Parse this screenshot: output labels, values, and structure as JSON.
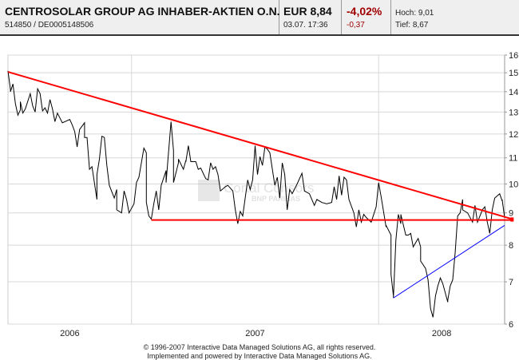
{
  "header": {
    "name": "CENTROSOLAR GROUP AG INHABER-AKTIEN O.N.",
    "ids": "514850  /  DE0005148506",
    "price": "EUR 8,84",
    "datetime": "03.07. 17:36",
    "change_pct": "-4,02%",
    "change_abs": "-0,37",
    "high": "Hoch: 9,01",
    "low": "Tief: 8,67"
  },
  "watermark": {
    "line1": "Cortal Consors",
    "line2": "BNP PARIBAS"
  },
  "footer": {
    "line1": "© 1996-2007 Interactive Data Managed Solutions AG, all rights reserved.",
    "line2": "Implemented and powered by Interactive Data Managed Solutions AG."
  },
  "chart_data": {
    "type": "line",
    "y_scale": "log",
    "ylim": [
      6,
      16
    ],
    "y_ticks": [
      "6",
      "7",
      "8",
      "9",
      "10",
      "11",
      "12",
      "13",
      "14",
      "15",
      "16"
    ],
    "y_axis_position": "right",
    "xlim": [
      2006.5,
      2008.51
    ],
    "x_tick_labels": [
      "2006",
      "2007",
      "2008"
    ],
    "grid": true,
    "colors": {
      "price": "#000000",
      "resistance": "#ff0000",
      "support": "#ff0000",
      "uptrend": "#0000ff"
    },
    "series": [
      {
        "x": [
          2006.5,
          2006.5,
          2006.51,
          2006.51,
          2006.52,
          2006.53,
          2006.54,
          2006.55,
          2006.55,
          2006.56,
          2006.57,
          2006.59,
          2006.6,
          2006.61,
          2006.62,
          2006.63,
          2006.64,
          2006.65,
          2006.66,
          2006.67,
          2006.68,
          2006.69,
          2006.7,
          2006.72,
          2006.75,
          2006.76,
          2006.77,
          2006.78,
          2006.79,
          2006.81,
          2006.81,
          2006.82,
          2006.83,
          2006.84,
          2006.86,
          2006.86,
          2006.87,
          2006.88,
          2006.89,
          2006.9,
          2006.91,
          2006.93,
          2006.94,
          2006.94,
          2006.96,
          2006.97,
          2006.98,
          2006.99,
          2007.01,
          2007.02,
          2007.03,
          2007.05,
          2007.06,
          2007.06,
          2007.07,
          2007.08,
          2007.09,
          2007.1,
          2007.11,
          2007.12,
          2007.14,
          2007.14,
          2007.16,
          2007.17,
          2007.17,
          2007.19,
          2007.19,
          2007.21,
          2007.22,
          2007.22,
          2007.23,
          2007.24,
          2007.26,
          2007.27,
          2007.28,
          2007.3,
          2007.31,
          2007.32,
          2007.33,
          2007.34,
          2007.35,
          2007.36,
          2007.38,
          2007.39,
          2007.41,
          2007.42,
          2007.43,
          2007.44,
          2007.45,
          2007.47,
          2007.48,
          2007.49,
          2007.5,
          2007.51,
          2007.52,
          2007.53,
          2007.54,
          2007.55,
          2007.56,
          2007.57,
          2007.58,
          2007.59,
          2007.6,
          2007.61,
          2007.62,
          2007.63,
          2007.64,
          2007.65,
          2007.67,
          2007.69,
          2007.7,
          2007.72,
          2007.74,
          2007.75,
          2007.77,
          2007.79,
          2007.81,
          2007.82,
          2007.83,
          2007.84,
          2007.85,
          2007.86,
          2007.87,
          2007.88,
          2007.9,
          2007.91,
          2007.92,
          2007.93,
          2007.94,
          2007.95,
          2007.97,
          2007.99,
          2008.0,
          2008.01,
          2008.03,
          2008.03,
          2008.05,
          2008.05,
          2008.06,
          2008.06,
          2008.07,
          2008.08,
          2008.09,
          2008.09,
          2008.11,
          2008.12,
          2008.13,
          2008.14,
          2008.16,
          2008.17,
          2008.17,
          2008.19,
          2008.2,
          2008.21,
          2008.22,
          2008.23,
          2008.24,
          2008.25,
          2008.26,
          2008.28,
          2008.28,
          2008.29,
          2008.3,
          2008.31,
          2008.32,
          2008.33,
          2008.34,
          2008.34,
          2008.36,
          2008.38,
          2008.39,
          2008.4,
          2008.42,
          2008.43,
          2008.44,
          2008.45,
          2008.46,
          2008.47,
          2008.49,
          2008.5,
          2008.5,
          2008.51
        ],
        "y": [
          15.05,
          15.1,
          14.1,
          14.0,
          14.4,
          13.4,
          12.85,
          13.1,
          13.5,
          12.95,
          13.15,
          13.9,
          13.3,
          13.0,
          14.15,
          13.9,
          13.05,
          13.2,
          12.95,
          13.6,
          13.15,
          12.55,
          12.95,
          12.5,
          12.65,
          12.4,
          12.1,
          11.45,
          12.2,
          12.5,
          11.85,
          11.85,
          10.55,
          10.65,
          9.45,
          10.35,
          10.95,
          11.9,
          11.85,
          10.7,
          9.95,
          9.5,
          9.8,
          9.1,
          9.0,
          9.75,
          9.45,
          9.0,
          9.3,
          10.05,
          10.25,
          11.4,
          11.2,
          9.35,
          8.9,
          8.8,
          9.3,
          9.75,
          9.1,
          9.95,
          10.5,
          10.05,
          12.55,
          11.3,
          10.05,
          10.8,
          10.95,
          10.55,
          10.9,
          10.85,
          11.5,
          10.85,
          10.85,
          10.55,
          10.6,
          10.2,
          10.15,
          10.8,
          10.55,
          10.65,
          10.35,
          9.75,
          9.9,
          9.95,
          9.75,
          9.1,
          8.65,
          9.05,
          8.9,
          10.15,
          9.8,
          10.15,
          11.5,
          10.35,
          11.05,
          10.7,
          11.45,
          11.35,
          11.2,
          10.55,
          9.95,
          10.25,
          9.5,
          10.8,
          10.35,
          9.1,
          9.8,
          9.65,
          10.0,
          10.4,
          9.75,
          9.65,
          9.25,
          9.45,
          9.35,
          9.3,
          9.35,
          9.9,
          9.45,
          10.3,
          9.6,
          10.25,
          10.15,
          9.45,
          9.0,
          8.55,
          9.1,
          8.7,
          8.95,
          8.85,
          8.7,
          9.2,
          10.05,
          9.55,
          8.55,
          8.6,
          8.3,
          7.2,
          6.65,
          6.6,
          8.15,
          8.95,
          8.65,
          8.95,
          8.3,
          8.3,
          8.35,
          7.95,
          8.2,
          7.95,
          7.55,
          7.35,
          7.05,
          6.35,
          6.15,
          6.65,
          6.9,
          7.1,
          6.95,
          6.5,
          6.55,
          6.9,
          7.05,
          7.8,
          8.9,
          9.0,
          9.45,
          9.1,
          9.0,
          8.7,
          9.25,
          8.7,
          9.1,
          9.2,
          8.7,
          8.35,
          9.1,
          9.5,
          9.65,
          9.4,
          9.45,
          8.84
        ]
      }
    ],
    "trendlines": [
      {
        "kind": "resistance",
        "from": [
          2006.5,
          15.05
        ],
        "to": [
          2008.54,
          8.8
        ]
      },
      {
        "kind": "support",
        "from": [
          2007.08,
          8.77
        ],
        "to": [
          2008.54,
          8.77
        ]
      },
      {
        "kind": "uptrend",
        "from": [
          2008.06,
          6.6
        ],
        "to": [
          2008.51,
          8.6
        ]
      }
    ]
  }
}
